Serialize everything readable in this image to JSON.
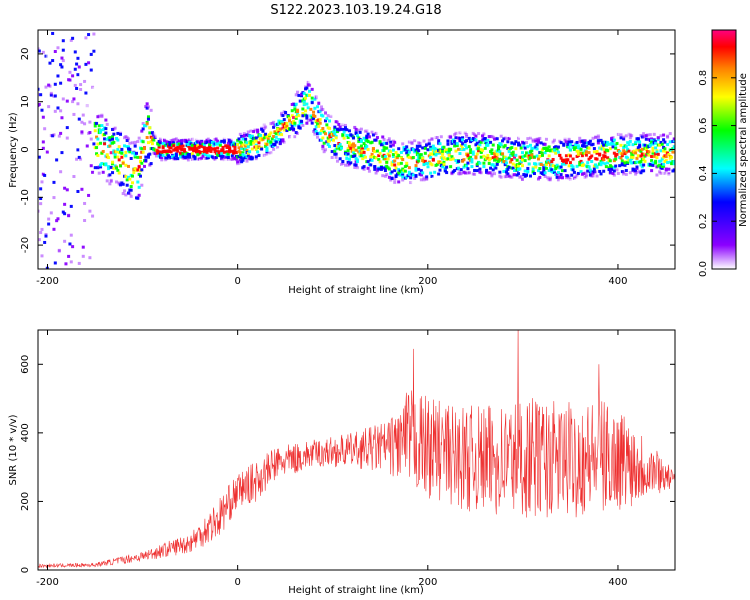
{
  "figure_title": "S122.2023.103.19.24.G18",
  "chart_data": [
    {
      "type": "heatmap",
      "title": "S122.2023.103.19.24.G18",
      "xlabel": "Height of straight line (km)",
      "ylabel": "Frequency (Hz)",
      "xlim": [
        -210,
        460
      ],
      "ylim": [
        -25,
        25
      ],
      "xticks": [
        -200,
        0,
        200,
        400
      ],
      "yticks": [
        -20,
        -10,
        0,
        10,
        20
      ],
      "grid": false,
      "colorbar": {
        "label": "Normalized spectral amplitude",
        "range": [
          0,
          1
        ],
        "ticks": [
          0.0,
          0.2,
          0.4,
          0.6,
          0.8
        ],
        "colors": [
          "#ffffff",
          "#8b00ff",
          "#0000ff",
          "#00ffff",
          "#00ff00",
          "#ffff00",
          "#ff8000",
          "#ff0000",
          "#ff0080"
        ]
      },
      "ridge": {
        "x": [
          -150,
          -120,
          -105,
          -95,
          -85,
          -60,
          0,
          20,
          40,
          60,
          75,
          90,
          110,
          150,
          170,
          200,
          230,
          260,
          300,
          350,
          400,
          460
        ],
        "y": [
          2,
          -3,
          -5,
          4,
          0,
          0,
          0,
          1,
          3,
          7,
          10,
          4,
          1,
          -1,
          -3,
          -2,
          -1,
          -1,
          -2,
          -2,
          -1,
          -1
        ]
      }
    },
    {
      "type": "line",
      "xlabel": "Height of straight line (km)",
      "ylabel": "SNR (10 * v/v)",
      "xlim": [
        -210,
        460
      ],
      "ylim": [
        0,
        700
      ],
      "xticks": [
        -200,
        0,
        200,
        400
      ],
      "yticks": [
        0,
        200,
        400,
        600
      ],
      "grid": false,
      "color": "#ee3030",
      "envelope": {
        "x": [
          -210,
          -150,
          -100,
          -50,
          -20,
          0,
          20,
          40,
          80,
          120,
          160,
          180,
          200,
          230,
          260,
          300,
          340,
          380,
          410,
          440,
          460
        ],
        "y": [
          12,
          15,
          40,
          80,
          150,
          230,
          260,
          310,
          340,
          350,
          360,
          380,
          360,
          330,
          320,
          330,
          320,
          330,
          320,
          290,
          260
        ],
        "spread": [
          5,
          6,
          15,
          30,
          60,
          50,
          60,
          50,
          40,
          50,
          80,
          150,
          150,
          150,
          160,
          180,
          170,
          170,
          140,
          70,
          20
        ],
        "peaks": [
          {
            "x": 295,
            "y": 710
          },
          {
            "x": 185,
            "y": 645
          },
          {
            "x": 380,
            "y": 600
          }
        ]
      }
    }
  ]
}
